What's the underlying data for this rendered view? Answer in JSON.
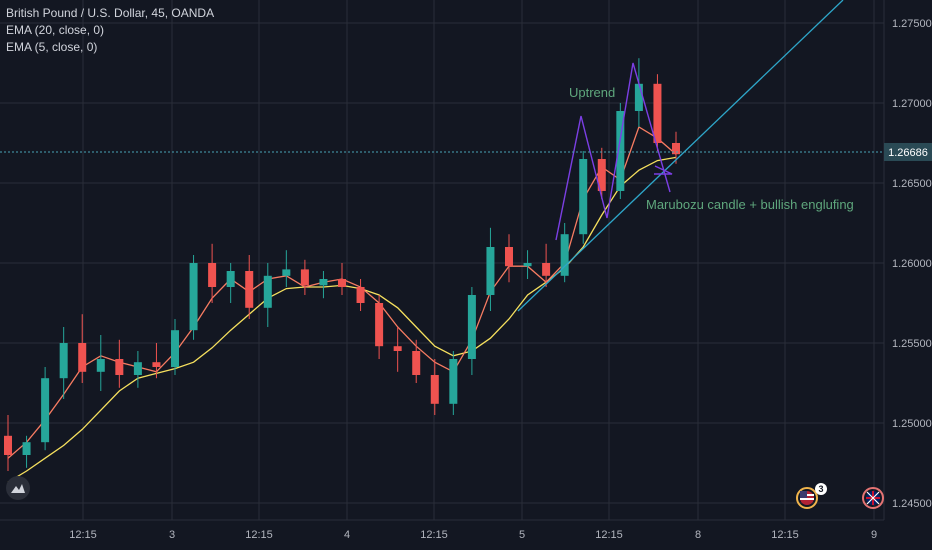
{
  "legend": {
    "symbol": "British Pound / U.S. Dollar, 45, OANDA",
    "ema20": "EMA (20, close, 0)",
    "ema5": "EMA (5, close, 0)"
  },
  "colors": {
    "background": "#131722",
    "grid": "#2a2e39",
    "up": "#26a69a",
    "down": "#ef5350",
    "ema20": "#f6e05e",
    "ema5": "#f77c62",
    "trendline": "#2ea6c9",
    "pattern": "#7b3fe4",
    "annotation": "#5fa77d",
    "current_price_bg": "#2a4a55"
  },
  "annotations": {
    "uptrend": "Uptrend",
    "pattern": "Marubozu candle + bullish englufing"
  },
  "current_price": "1.26686",
  "chart_data": {
    "type": "candlestick",
    "title": "British Pound / U.S. Dollar, 45, OANDA",
    "y_ticks": [
      "1.27500",
      "1.27000",
      "1.26500",
      "1.26000",
      "1.25500",
      "1.25000",
      "1.24500"
    ],
    "x_ticks": [
      "12:15",
      "3",
      "12:15",
      "4",
      "12:15",
      "5",
      "12:15",
      "8",
      "12:15",
      "9"
    ],
    "ylim": [
      1.2445,
      1.2775
    ],
    "grid": true,
    "series": [
      {
        "name": "EMA (20, close, 0)",
        "values": [
          1.2463,
          1.247,
          1.2478,
          1.2486,
          1.2496,
          1.2508,
          1.252,
          1.2528,
          1.2531,
          1.2534,
          1.2538,
          1.2547,
          1.2558,
          1.2568,
          1.2578,
          1.2584,
          1.2585,
          1.2585,
          1.2586,
          1.2584,
          1.258,
          1.2572,
          1.256,
          1.2548,
          1.2542,
          1.2545,
          1.2553,
          1.2565,
          1.258,
          1.2588,
          1.2597,
          1.261,
          1.263,
          1.2648,
          1.2658,
          1.2664,
          1.2666
        ]
      },
      {
        "name": "EMA (5, close, 0)",
        "values": [
          1.2478,
          1.2488,
          1.2502,
          1.2518,
          1.2535,
          1.2542,
          1.2538,
          1.2535,
          1.2532,
          1.2544,
          1.256,
          1.2578,
          1.259,
          1.2582,
          1.259,
          1.2592,
          1.2585,
          1.2588,
          1.259,
          1.2585,
          1.2575,
          1.256,
          1.2548,
          1.2538,
          1.2532,
          1.2552,
          1.2582,
          1.2598,
          1.2598,
          1.2588,
          1.26,
          1.264,
          1.266,
          1.2652,
          1.2685,
          1.2678,
          1.2668
        ]
      }
    ],
    "candles": [
      {
        "o": 1.2492,
        "h": 1.2505,
        "l": 1.247,
        "c": 1.248
      },
      {
        "o": 1.248,
        "h": 1.2492,
        "l": 1.2472,
        "c": 1.2488
      },
      {
        "o": 1.2488,
        "h": 1.2535,
        "l": 1.2483,
        "c": 1.2528
      },
      {
        "o": 1.2528,
        "h": 1.256,
        "l": 1.2515,
        "c": 1.255
      },
      {
        "o": 1.255,
        "h": 1.2568,
        "l": 1.2525,
        "c": 1.2532
      },
      {
        "o": 1.2532,
        "h": 1.2555,
        "l": 1.252,
        "c": 1.254
      },
      {
        "o": 1.254,
        "h": 1.2552,
        "l": 1.2522,
        "c": 1.253
      },
      {
        "o": 1.253,
        "h": 1.2545,
        "l": 1.2522,
        "c": 1.2538
      },
      {
        "o": 1.2538,
        "h": 1.255,
        "l": 1.2528,
        "c": 1.2535
      },
      {
        "o": 1.2535,
        "h": 1.2565,
        "l": 1.253,
        "c": 1.2558
      },
      {
        "o": 1.2558,
        "h": 1.2605,
        "l": 1.2552,
        "c": 1.26
      },
      {
        "o": 1.26,
        "h": 1.2612,
        "l": 1.2575,
        "c": 1.2585
      },
      {
        "o": 1.2585,
        "h": 1.26,
        "l": 1.2575,
        "c": 1.2595
      },
      {
        "o": 1.2595,
        "h": 1.2605,
        "l": 1.2565,
        "c": 1.2572
      },
      {
        "o": 1.2572,
        "h": 1.26,
        "l": 1.256,
        "c": 1.2592
      },
      {
        "o": 1.2592,
        "h": 1.2608,
        "l": 1.2585,
        "c": 1.2596
      },
      {
        "o": 1.2596,
        "h": 1.2602,
        "l": 1.258,
        "c": 1.2586
      },
      {
        "o": 1.2586,
        "h": 1.2595,
        "l": 1.2578,
        "c": 1.259
      },
      {
        "o": 1.259,
        "h": 1.26,
        "l": 1.258,
        "c": 1.2585
      },
      {
        "o": 1.2585,
        "h": 1.259,
        "l": 1.257,
        "c": 1.2575
      },
      {
        "o": 1.2575,
        "h": 1.258,
        "l": 1.254,
        "c": 1.2548
      },
      {
        "o": 1.2548,
        "h": 1.256,
        "l": 1.2532,
        "c": 1.2545
      },
      {
        "o": 1.2545,
        "h": 1.2552,
        "l": 1.2525,
        "c": 1.253
      },
      {
        "o": 1.253,
        "h": 1.254,
        "l": 1.2505,
        "c": 1.2512
      },
      {
        "o": 1.2512,
        "h": 1.2545,
        "l": 1.2505,
        "c": 1.254
      },
      {
        "o": 1.254,
        "h": 1.2585,
        "l": 1.253,
        "c": 1.258
      },
      {
        "o": 1.258,
        "h": 1.2622,
        "l": 1.257,
        "c": 1.261
      },
      {
        "o": 1.261,
        "h": 1.2618,
        "l": 1.2588,
        "c": 1.2598
      },
      {
        "o": 1.2598,
        "h": 1.2608,
        "l": 1.259,
        "c": 1.26
      },
      {
        "o": 1.26,
        "h": 1.2612,
        "l": 1.2585,
        "c": 1.2592
      },
      {
        "o": 1.2592,
        "h": 1.2625,
        "l": 1.2588,
        "c": 1.2618
      },
      {
        "o": 1.2618,
        "h": 1.267,
        "l": 1.2612,
        "c": 1.2665
      },
      {
        "o": 1.2665,
        "h": 1.2672,
        "l": 1.264,
        "c": 1.2645
      },
      {
        "o": 1.2645,
        "h": 1.27,
        "l": 1.264,
        "c": 1.2695
      },
      {
        "o": 1.2695,
        "h": 1.2728,
        "l": 1.2685,
        "c": 1.2712
      },
      {
        "o": 1.2712,
        "h": 1.2718,
        "l": 1.267,
        "c": 1.2675
      },
      {
        "o": 1.2675,
        "h": 1.2682,
        "l": 1.2662,
        "c": 1.2668
      }
    ]
  }
}
